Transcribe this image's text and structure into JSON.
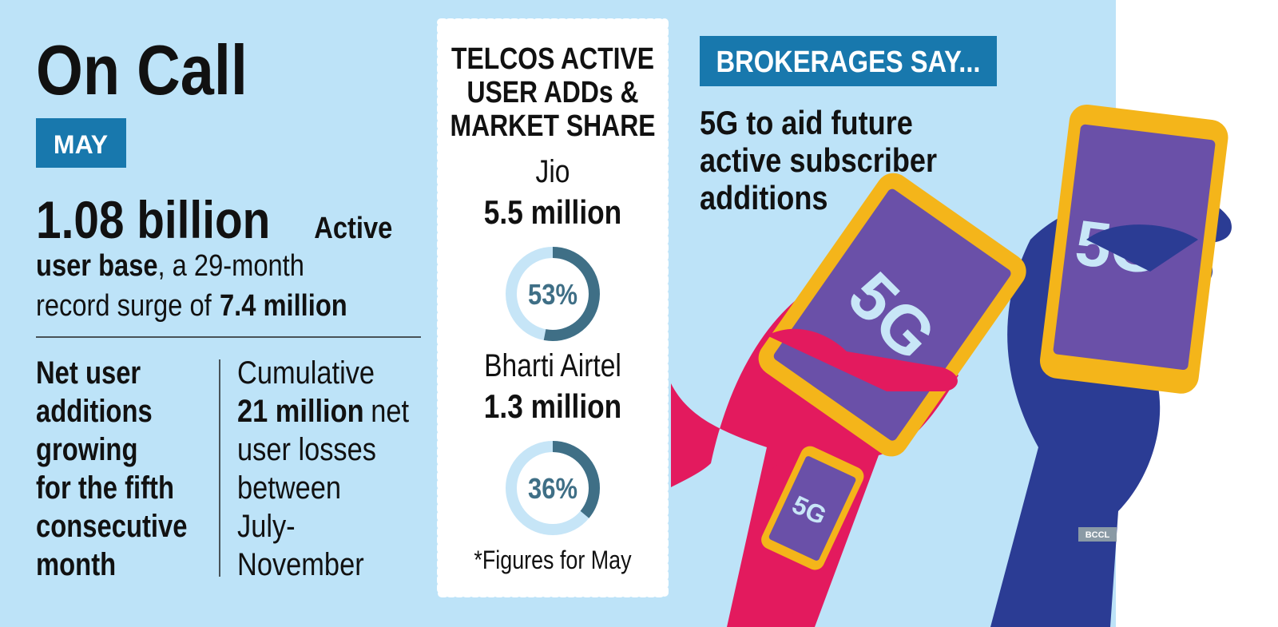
{
  "header": {
    "title": "On Call",
    "month": "MAY"
  },
  "headline": {
    "figure": "1.08 billion",
    "runs": [
      "Active",
      "user base",
      ", a 29-month",
      "record surge of",
      "7.4 million"
    ]
  },
  "net_additions": {
    "lines": [
      "Net user",
      "additions",
      "growing",
      "for the fifth",
      "consecutive",
      "month"
    ]
  },
  "cumulative": {
    "lines": [
      [
        "Cumulative"
      ],
      [
        "21 million",
        "net"
      ],
      [
        "user losses"
      ],
      [
        "between"
      ],
      [
        "July-"
      ],
      [
        "November"
      ]
    ]
  },
  "market_share": {
    "title": [
      "TELCOS ACTIVE",
      "USER ADDs &",
      "MARKET SHARE"
    ],
    "telcos": [
      {
        "name": "Jio",
        "adds": "5.5 million",
        "share": {
          "value": 53,
          "label": "53%"
        }
      },
      {
        "name": "Bharti Airtel",
        "adds": "1.3 million",
        "share": {
          "value": 36,
          "label": "36%"
        }
      }
    ],
    "footnote": "*Figures for May"
  },
  "brokerages": {
    "tag": "BROKERAGES SAY...",
    "lines": [
      "5G to aid future",
      "active subscriber",
      "additions"
    ]
  },
  "illustration": {
    "phone_label": "5G"
  },
  "credit": "BCCL"
}
